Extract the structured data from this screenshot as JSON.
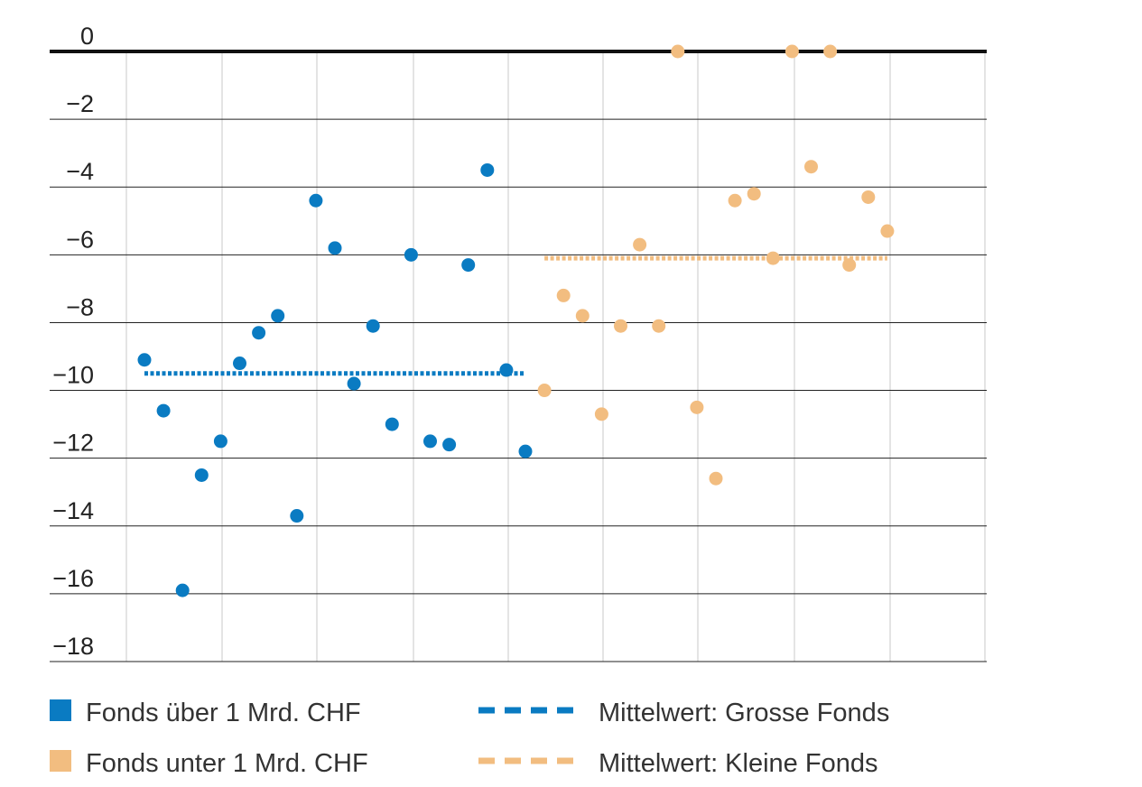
{
  "chart_data": {
    "type": "scatter",
    "title": "",
    "xlabel": "",
    "ylabel": "",
    "ylim": [
      -18,
      0
    ],
    "yticks": [
      0,
      -2,
      -4,
      -6,
      -8,
      -10,
      -12,
      -14,
      -16,
      -18
    ],
    "ytick_labels": [
      "0",
      "−2",
      "−4",
      "−6",
      "−8",
      "−10",
      "−12",
      "−14",
      "−16",
      "−18"
    ],
    "xlim": [
      0,
      50
    ],
    "grid": {
      "horizontal": true,
      "vertical": true
    },
    "legend_position": "bottom",
    "series": [
      {
        "name": "Fonds über 1 Mrd. CHF",
        "color": "#0a7bc2",
        "x": [
          1,
          2,
          3,
          4,
          5,
          6,
          7,
          8,
          9,
          10,
          11,
          12,
          13,
          14,
          15,
          16,
          17,
          18,
          19,
          20,
          21
        ],
        "values": [
          -9.1,
          -10.6,
          -15.9,
          -12.5,
          -11.5,
          -9.2,
          -8.3,
          -7.8,
          -13.7,
          -4.4,
          -5.8,
          -9.8,
          -8.1,
          -11.0,
          -6.0,
          -11.5,
          -11.6,
          -6.3,
          -3.5,
          -9.4,
          -11.8
        ]
      },
      {
        "name": "Fonds unter 1 Mrd. CHF",
        "color": "#f2bd80",
        "x": [
          22,
          23,
          24,
          25,
          26,
          27,
          28,
          29,
          30,
          31,
          32,
          33,
          34,
          35,
          36,
          37,
          38,
          39,
          40
        ],
        "values": [
          -10.0,
          -7.2,
          -7.8,
          -10.7,
          -8.1,
          -5.7,
          -8.1,
          0.0,
          -10.5,
          -12.6,
          -4.4,
          -4.2,
          -6.1,
          0.0,
          -3.4,
          0.0,
          -6.3,
          -4.3,
          -5.3
        ]
      }
    ],
    "mean_lines": [
      {
        "name": "Mittelwert: Grosse Fonds",
        "color": "#0a7bc2",
        "value": -9.5,
        "x_range": [
          1,
          21
        ]
      },
      {
        "name": "Mittelwert: Kleine Fonds",
        "color": "#f2bd80",
        "value": -6.1,
        "x_range": [
          22,
          40
        ]
      }
    ]
  }
}
